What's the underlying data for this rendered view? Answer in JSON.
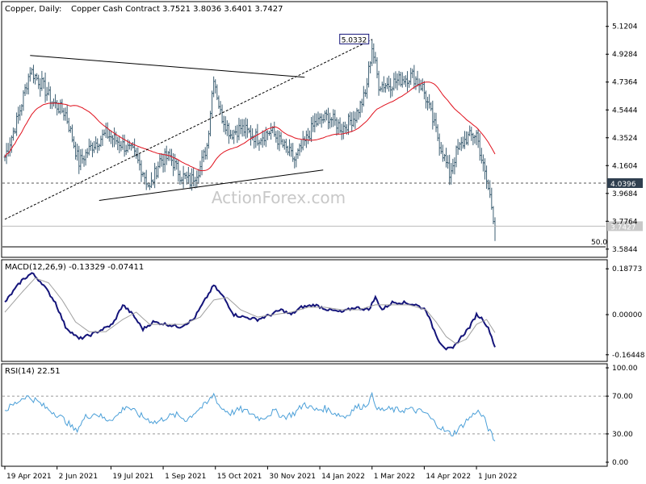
{
  "header": {
    "symbol": "Copper, Daily:",
    "instrument": "Copper Cash Contract",
    "ohlc": "3.7521 3.8036 3.6401 3.7427"
  },
  "watermark": "ActionForex.com",
  "colors": {
    "background": "#ffffff",
    "bar": "#3d5f73",
    "ma": "#e0101c",
    "macd": "#14147a",
    "signal": "#a0a0a0",
    "rsi": "#4a9fd8",
    "axis": "#000000",
    "level_tag": "#2f3f4f"
  },
  "chart_data": [
    {
      "type": "ohlc",
      "panel": "price",
      "y_ticks": [
        "5.1204",
        "4.9284",
        "4.7364",
        "4.5444",
        "4.3524",
        "4.1604",
        "3.9684",
        "3.7764",
        "3.5844"
      ],
      "ylim": [
        3.55,
        5.18
      ],
      "x_ticks": [
        "19 Apr 2021",
        "2 Jun 2021",
        "19 Jul 2021",
        "1 Sep 2021",
        "15 Oct 2021",
        "30 Nov 2021",
        "14 Jan 2022",
        "1 Mar 2022",
        "14 Apr 2022",
        "1 Jun 2022"
      ],
      "bars": 292,
      "close_path": [
        [
          0,
          4.22
        ],
        [
          8,
          4.5
        ],
        [
          15,
          4.82
        ],
        [
          22,
          4.72
        ],
        [
          28,
          4.6
        ],
        [
          36,
          4.52
        ],
        [
          44,
          4.18
        ],
        [
          52,
          4.3
        ],
        [
          60,
          4.38
        ],
        [
          68,
          4.32
        ],
        [
          76,
          4.25
        ],
        [
          82,
          4.12
        ],
        [
          86,
          4.0
        ],
        [
          92,
          4.2
        ],
        [
          98,
          4.22
        ],
        [
          104,
          4.1
        ],
        [
          110,
          4.05
        ],
        [
          116,
          4.15
        ],
        [
          120,
          4.3
        ],
        [
          124,
          4.78
        ],
        [
          128,
          4.52
        ],
        [
          134,
          4.38
        ],
        [
          140,
          4.42
        ],
        [
          150,
          4.35
        ],
        [
          158,
          4.4
        ],
        [
          165,
          4.3
        ],
        [
          172,
          4.2
        ],
        [
          178,
          4.32
        ],
        [
          184,
          4.45
        ],
        [
          192,
          4.5
        ],
        [
          200,
          4.42
        ],
        [
          208,
          4.5
        ],
        [
          214,
          4.65
        ],
        [
          218,
          4.98
        ],
        [
          222,
          4.72
        ],
        [
          228,
          4.72
        ],
        [
          236,
          4.76
        ],
        [
          242,
          4.78
        ],
        [
          248,
          4.7
        ],
        [
          252,
          4.55
        ],
        [
          258,
          4.32
        ],
        [
          264,
          4.1
        ],
        [
          268,
          4.25
        ],
        [
          274,
          4.35
        ],
        [
          280,
          4.38
        ],
        [
          284,
          4.15
        ],
        [
          288,
          3.95
        ],
        [
          291,
          3.7427
        ]
      ],
      "high": 5.0332,
      "ma_label": "MA",
      "levels": [
        {
          "value": 4.0396,
          "label": "4.0396",
          "style": "dotted"
        },
        {
          "value": 3.7427,
          "label": "3.7427",
          "style": "solid-light"
        }
      ],
      "fib_label": "50.0",
      "fib_value": 3.6,
      "peak_label": "5.0332",
      "peak_value": 5.0332,
      "peak_bar": 218
    },
    {
      "type": "line",
      "panel": "macd",
      "title": "MACD(12,26,9) -0.13329 -0.07411",
      "y_ticks": [
        "0.18773",
        "0.00000",
        "-0.16448"
      ],
      "ylim": [
        -0.185,
        0.205
      ],
      "series": [
        {
          "role": "macd",
          "points": [
            [
              0,
              0.05
            ],
            [
              10,
              0.14
            ],
            [
              16,
              0.17
            ],
            [
              22,
              0.13
            ],
            [
              30,
              0.05
            ],
            [
              36,
              -0.05
            ],
            [
              44,
              -0.1
            ],
            [
              52,
              -0.08
            ],
            [
              58,
              -0.06
            ],
            [
              64,
              -0.04
            ],
            [
              70,
              0.04
            ],
            [
              76,
              0.0
            ],
            [
              82,
              -0.06
            ],
            [
              88,
              -0.03
            ],
            [
              96,
              -0.04
            ],
            [
              104,
              -0.05
            ],
            [
              112,
              -0.02
            ],
            [
              118,
              0.05
            ],
            [
              124,
              0.12
            ],
            [
              130,
              0.07
            ],
            [
              136,
              0.0
            ],
            [
              142,
              -0.01
            ],
            [
              150,
              -0.02
            ],
            [
              158,
              0.0
            ],
            [
              164,
              0.02
            ],
            [
              170,
              0.0
            ],
            [
              176,
              0.03
            ],
            [
              184,
              0.04
            ],
            [
              192,
              0.02
            ],
            [
              200,
              0.01
            ],
            [
              208,
              0.03
            ],
            [
              216,
              0.02
            ],
            [
              220,
              0.07
            ],
            [
              224,
              0.02
            ],
            [
              230,
              0.05
            ],
            [
              236,
              0.05
            ],
            [
              244,
              0.04
            ],
            [
              250,
              0.02
            ],
            [
              254,
              -0.05
            ],
            [
              258,
              -0.11
            ],
            [
              262,
              -0.14
            ],
            [
              266,
              -0.14
            ],
            [
              270,
              -0.1
            ],
            [
              276,
              -0.05
            ],
            [
              280,
              0.0
            ],
            [
              284,
              -0.02
            ],
            [
              288,
              -0.07
            ],
            [
              291,
              -0.13329
            ]
          ]
        },
        {
          "role": "signal",
          "points": [
            [
              0,
              0.01
            ],
            [
              10,
              0.09
            ],
            [
              18,
              0.15
            ],
            [
              26,
              0.13
            ],
            [
              34,
              0.06
            ],
            [
              42,
              -0.03
            ],
            [
              50,
              -0.07
            ],
            [
              60,
              -0.07
            ],
            [
              70,
              -0.02
            ],
            [
              78,
              0.01
            ],
            [
              86,
              -0.04
            ],
            [
              96,
              -0.04
            ],
            [
              106,
              -0.04
            ],
            [
              116,
              -0.01
            ],
            [
              124,
              0.06
            ],
            [
              132,
              0.07
            ],
            [
              140,
              0.02
            ],
            [
              150,
              -0.01
            ],
            [
              160,
              0.0
            ],
            [
              170,
              0.01
            ],
            [
              180,
              0.03
            ],
            [
              190,
              0.03
            ],
            [
              200,
              0.02
            ],
            [
              210,
              0.02
            ],
            [
              220,
              0.04
            ],
            [
              230,
              0.04
            ],
            [
              240,
              0.04
            ],
            [
              250,
              0.02
            ],
            [
              256,
              -0.03
            ],
            [
              262,
              -0.09
            ],
            [
              268,
              -0.12
            ],
            [
              274,
              -0.1
            ],
            [
              280,
              -0.04
            ],
            [
              286,
              -0.02
            ],
            [
              291,
              -0.07411
            ]
          ]
        }
      ]
    },
    {
      "type": "line",
      "panel": "rsi",
      "title": "RSI(14) 22.51",
      "y_ticks": [
        "100.00",
        "70.00",
        "30.00",
        "0.00"
      ],
      "ylim": [
        0,
        100
      ],
      "levels": [
        70,
        30
      ],
      "series": [
        {
          "role": "rsi",
          "points": [
            [
              0,
              55
            ],
            [
              6,
              62
            ],
            [
              12,
              70
            ],
            [
              18,
              66
            ],
            [
              24,
              58
            ],
            [
              30,
              52
            ],
            [
              36,
              44
            ],
            [
              42,
              33
            ],
            [
              48,
              48
            ],
            [
              54,
              52
            ],
            [
              60,
              45
            ],
            [
              66,
              48
            ],
            [
              72,
              60
            ],
            [
              78,
              52
            ],
            [
              84,
              46
            ],
            [
              90,
              42
            ],
            [
              96,
              48
            ],
            [
              102,
              50
            ],
            [
              108,
              45
            ],
            [
              114,
              55
            ],
            [
              120,
              62
            ],
            [
              124,
              72
            ],
            [
              128,
              58
            ],
            [
              134,
              52
            ],
            [
              140,
              56
            ],
            [
              146,
              52
            ],
            [
              152,
              46
            ],
            [
              160,
              54
            ],
            [
              166,
              48
            ],
            [
              172,
              52
            ],
            [
              178,
              62
            ],
            [
              184,
              55
            ],
            [
              190,
              57
            ],
            [
              196,
              52
            ],
            [
              202,
              48
            ],
            [
              208,
              58
            ],
            [
              214,
              60
            ],
            [
              218,
              70
            ],
            [
              222,
              55
            ],
            [
              228,
              56
            ],
            [
              234,
              55
            ],
            [
              240,
              56
            ],
            [
              246,
              54
            ],
            [
              250,
              52
            ],
            [
              254,
              44
            ],
            [
              258,
              38
            ],
            [
              262,
              32
            ],
            [
              266,
              30
            ],
            [
              270,
              36
            ],
            [
              274,
              44
            ],
            [
              278,
              50
            ],
            [
              280,
              55
            ],
            [
              284,
              48
            ],
            [
              288,
              32
            ],
            [
              291,
              22.51
            ]
          ]
        }
      ]
    }
  ]
}
